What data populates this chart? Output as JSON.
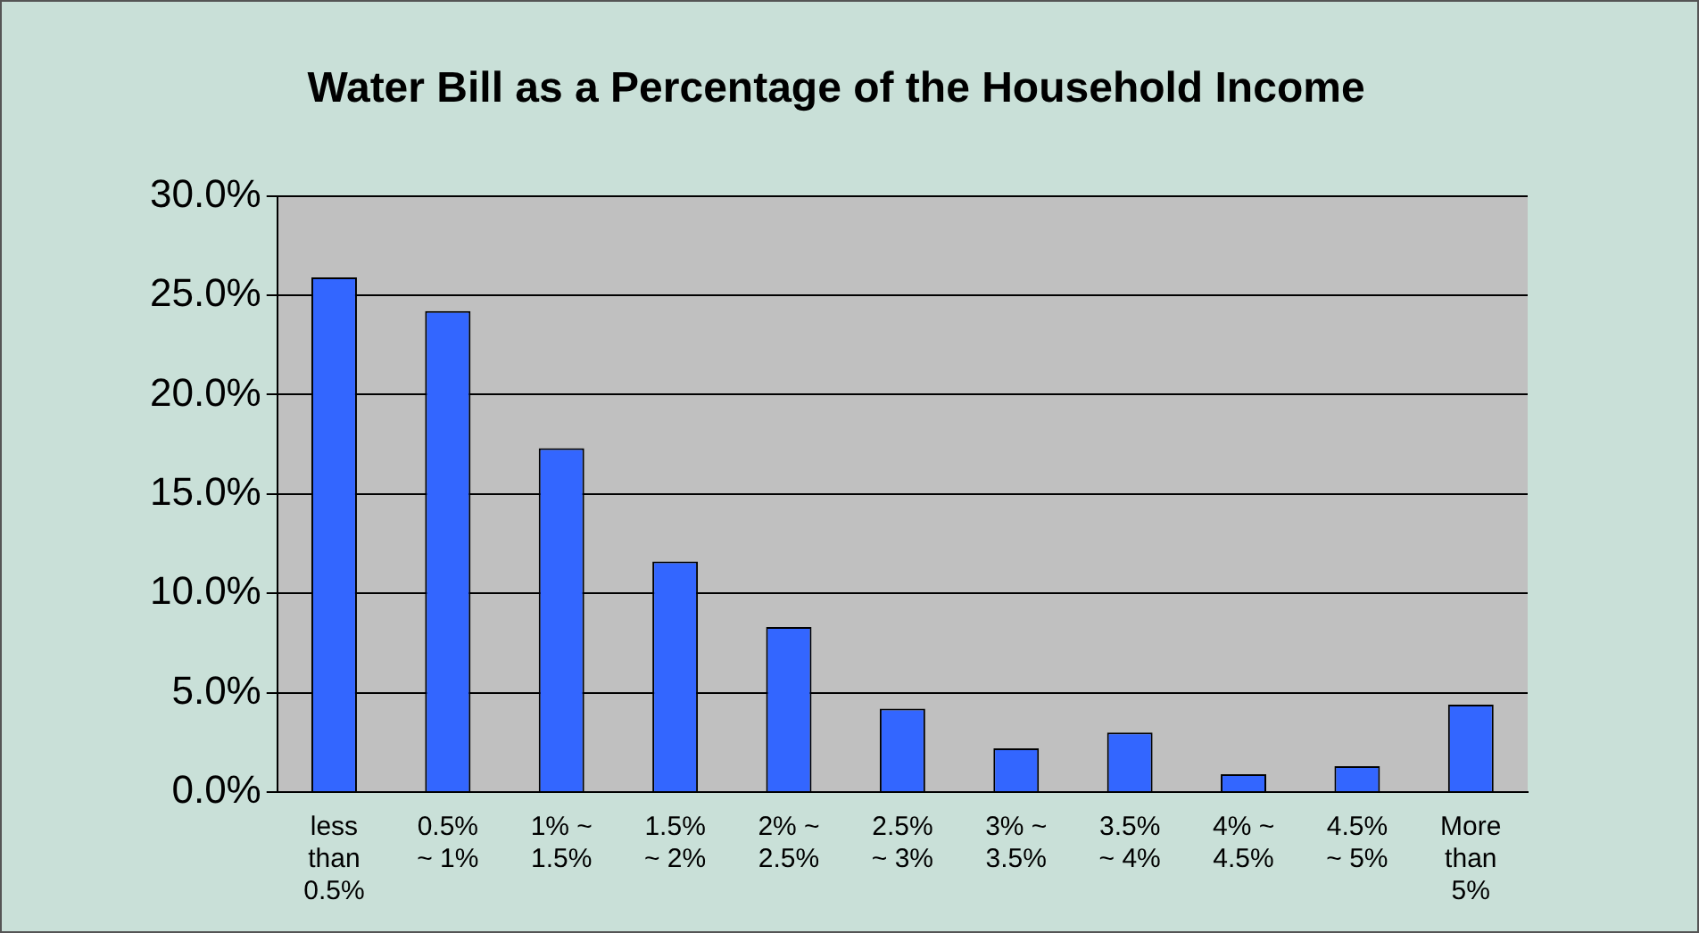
{
  "chart_data": {
    "type": "bar",
    "title": "Water Bill as a Percentage of the Household Income",
    "categories": [
      "less than 0.5%",
      "0.5% ~ 1%",
      "1% ~ 1.5%",
      "1.5% ~ 2%",
      "2% ~ 2.5%",
      "2.5% ~ 3%",
      "3% ~ 3.5%",
      "3.5% ~ 4%",
      "4% ~ 4.5%",
      "4.5% ~ 5%",
      "More than 5%"
    ],
    "values": [
      25.9,
      24.2,
      17.3,
      11.6,
      8.3,
      4.2,
      2.2,
      3.0,
      0.9,
      1.3,
      4.4
    ],
    "color": "#3366ff",
    "ylim": [
      0,
      30
    ],
    "yticks": [
      {
        "value": 0,
        "label": "0.0%"
      },
      {
        "value": 5,
        "label": "5.0%"
      },
      {
        "value": 10,
        "label": "10.0%"
      },
      {
        "value": 15,
        "label": "15.0%"
      },
      {
        "value": 20,
        "label": "20.0%"
      },
      {
        "value": 25,
        "label": "25.0%"
      },
      {
        "value": 30,
        "label": "30.0%"
      }
    ],
    "grid": "y"
  }
}
